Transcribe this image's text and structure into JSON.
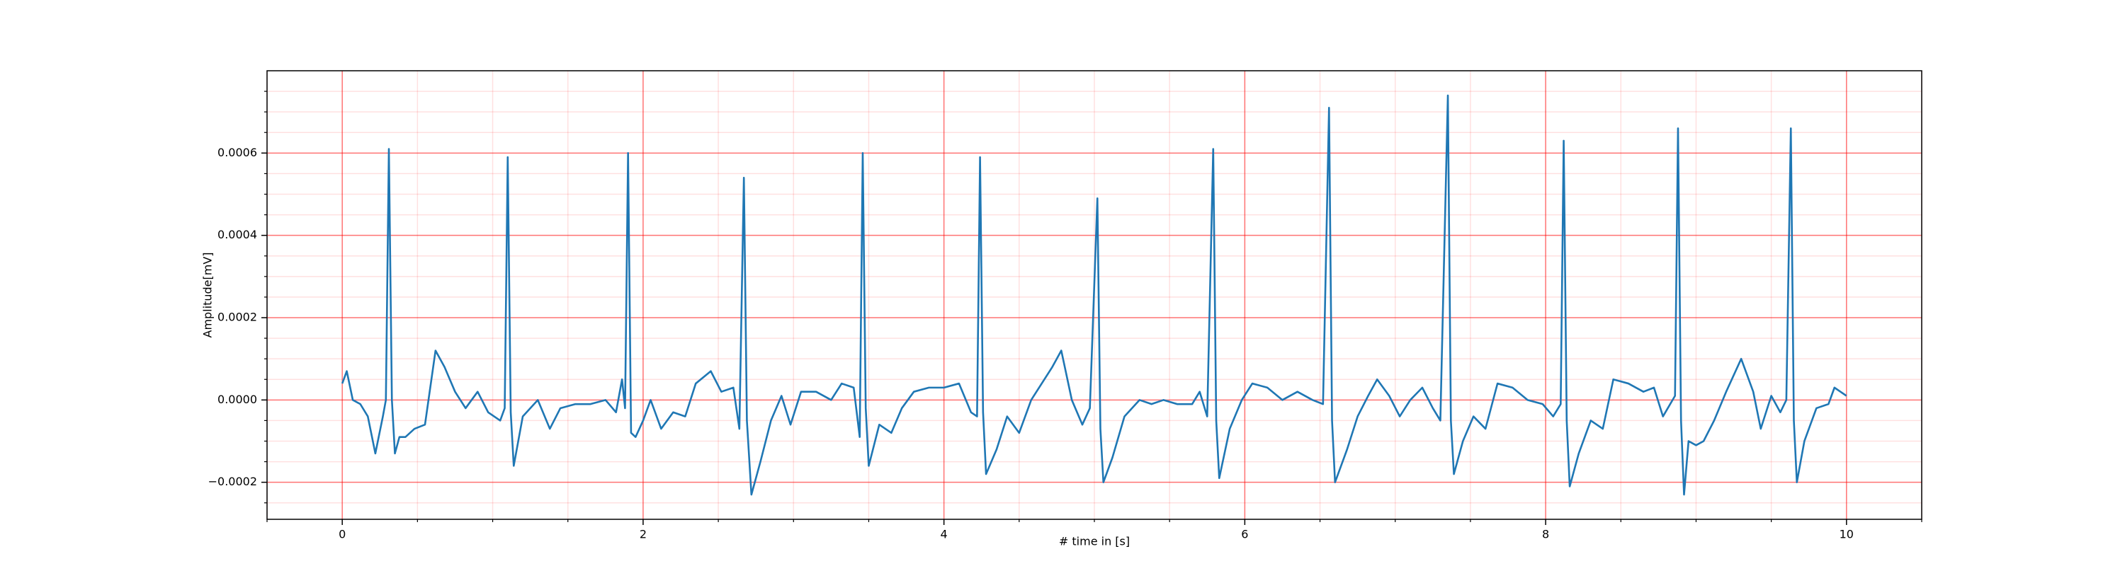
{
  "chart_data": {
    "type": "line",
    "xlabel": "# time in [s]",
    "ylabel": "Amplitude[mV]",
    "x": [
      0,
      0.03,
      0.07,
      0.12,
      0.17,
      0.22,
      0.27,
      0.29,
      0.31,
      0.33,
      0.35,
      0.38,
      0.42,
      0.48,
      0.55,
      0.62,
      0.68,
      0.75,
      0.82,
      0.9,
      0.97,
      1.05,
      1.08,
      1.1,
      1.12,
      1.14,
      1.2,
      1.3,
      1.38,
      1.45,
      1.55,
      1.65,
      1.75,
      1.82,
      1.86,
      1.88,
      1.9,
      1.92,
      1.95,
      2.0,
      2.05,
      2.12,
      2.2,
      2.28,
      2.35,
      2.45,
      2.52,
      2.6,
      2.64,
      2.67,
      2.69,
      2.72,
      2.78,
      2.85,
      2.92,
      2.98,
      3.05,
      3.15,
      3.25,
      3.32,
      3.4,
      3.44,
      3.46,
      3.48,
      3.5,
      3.57,
      3.65,
      3.72,
      3.8,
      3.9,
      4.0,
      4.1,
      4.18,
      4.22,
      4.24,
      4.26,
      4.28,
      4.35,
      4.42,
      4.5,
      4.58,
      4.65,
      4.72,
      4.78,
      4.85,
      4.92,
      4.97,
      5.02,
      5.04,
      5.06,
      5.12,
      5.2,
      5.3,
      5.38,
      5.46,
      5.55,
      5.65,
      5.7,
      5.75,
      5.79,
      5.81,
      5.83,
      5.9,
      5.98,
      6.05,
      6.15,
      6.25,
      6.35,
      6.45,
      6.52,
      6.56,
      6.58,
      6.6,
      6.68,
      6.75,
      6.82,
      6.88,
      6.96,
      7.03,
      7.1,
      7.18,
      7.25,
      7.3,
      7.35,
      7.37,
      7.39,
      7.45,
      7.52,
      7.6,
      7.68,
      7.78,
      7.88,
      7.98,
      8.05,
      8.1,
      8.12,
      8.14,
      8.16,
      8.22,
      8.3,
      8.38,
      8.45,
      8.55,
      8.65,
      8.72,
      8.78,
      8.86,
      8.88,
      8.9,
      8.92,
      8.95,
      9.0,
      9.05,
      9.12,
      9.2,
      9.3,
      9.38,
      9.43,
      9.5,
      9.56,
      9.6,
      9.63,
      9.65,
      9.67,
      9.72,
      9.8,
      9.88,
      9.92,
      9.96,
      10.0
    ],
    "series": [
      {
        "color": "#1f77b4",
        "values": [
          4e-05,
          7e-05,
          0.0,
          -1e-05,
          -4e-05,
          -0.00013,
          -4e-05,
          0.0,
          0.00061,
          0.0,
          -0.00013,
          -9e-05,
          -9e-05,
          -7e-05,
          -6e-05,
          0.00012,
          8e-05,
          2e-05,
          -2e-05,
          2e-05,
          -3e-05,
          -5e-05,
          -2e-05,
          0.00059,
          -3e-05,
          -0.00016,
          -4e-05,
          0.0,
          -7e-05,
          -2e-05,
          -1e-05,
          -1e-05,
          0.0,
          -3e-05,
          5e-05,
          -2e-05,
          0.0006,
          -8e-05,
          -9e-05,
          -5e-05,
          0.0,
          -7e-05,
          -3e-05,
          -4e-05,
          4e-05,
          7e-05,
          2e-05,
          3e-05,
          -7e-05,
          0.00054,
          -5e-05,
          -0.00023,
          -0.00015,
          -5e-05,
          1e-05,
          -6e-05,
          2e-05,
          2e-05,
          0.0,
          4e-05,
          3e-05,
          -9e-05,
          0.0006,
          -2e-05,
          -0.00016,
          -6e-05,
          -8e-05,
          -2e-05,
          2e-05,
          3e-05,
          3e-05,
          4e-05,
          -3e-05,
          -4e-05,
          0.00059,
          -3e-05,
          -0.00018,
          -0.00012,
          -4e-05,
          -8e-05,
          0.0,
          4e-05,
          8e-05,
          0.00012,
          0.0,
          -6e-05,
          -2e-05,
          0.00049,
          -7e-05,
          -0.0002,
          -0.00014,
          -4e-05,
          0.0,
          -1e-05,
          0.0,
          -1e-05,
          -1e-05,
          2e-05,
          -4e-05,
          0.00061,
          -5e-05,
          -0.00019,
          -7e-05,
          0.0,
          4e-05,
          3e-05,
          0.0,
          2e-05,
          0.0,
          -1e-05,
          0.00071,
          -5e-05,
          -0.0002,
          -0.00012,
          -4e-05,
          1e-05,
          5e-05,
          1e-05,
          -4e-05,
          0.0,
          3e-05,
          -2e-05,
          -5e-05,
          0.00074,
          -5e-05,
          -0.00018,
          -0.0001,
          -4e-05,
          -7e-05,
          4e-05,
          3e-05,
          0.0,
          -1e-05,
          -4e-05,
          -1e-05,
          0.00063,
          -5e-05,
          -0.00021,
          -0.00013,
          -5e-05,
          -7e-05,
          5e-05,
          4e-05,
          2e-05,
          3e-05,
          -4e-05,
          1e-05,
          0.00066,
          -5e-05,
          -0.00023,
          -0.0001,
          -0.00011,
          -0.0001,
          -5e-05,
          2e-05,
          0.0001,
          2e-05,
          -7e-05,
          1e-05,
          -3e-05,
          0.0,
          0.00066,
          -5e-05,
          -0.0002,
          -0.0001,
          -2e-05,
          -1e-05,
          3e-05,
          2e-05,
          1e-05
        ]
      }
    ],
    "xlim": [
      -0.5,
      10.5
    ],
    "ylim": [
      -0.00029,
      0.0008
    ],
    "xticks": [
      0,
      2,
      4,
      6,
      8,
      10
    ],
    "yticks": [
      {
        "value": -0.0002,
        "label": "−0.0002"
      },
      {
        "value": 0,
        "label": "0.0000"
      },
      {
        "value": 0.0002,
        "label": "0.0002"
      },
      {
        "value": 0.0004,
        "label": "0.0004"
      },
      {
        "value": 0.0006,
        "label": "0.0006"
      }
    ],
    "grid": true,
    "minor_grid": true,
    "grid_color": "#ff0000"
  }
}
